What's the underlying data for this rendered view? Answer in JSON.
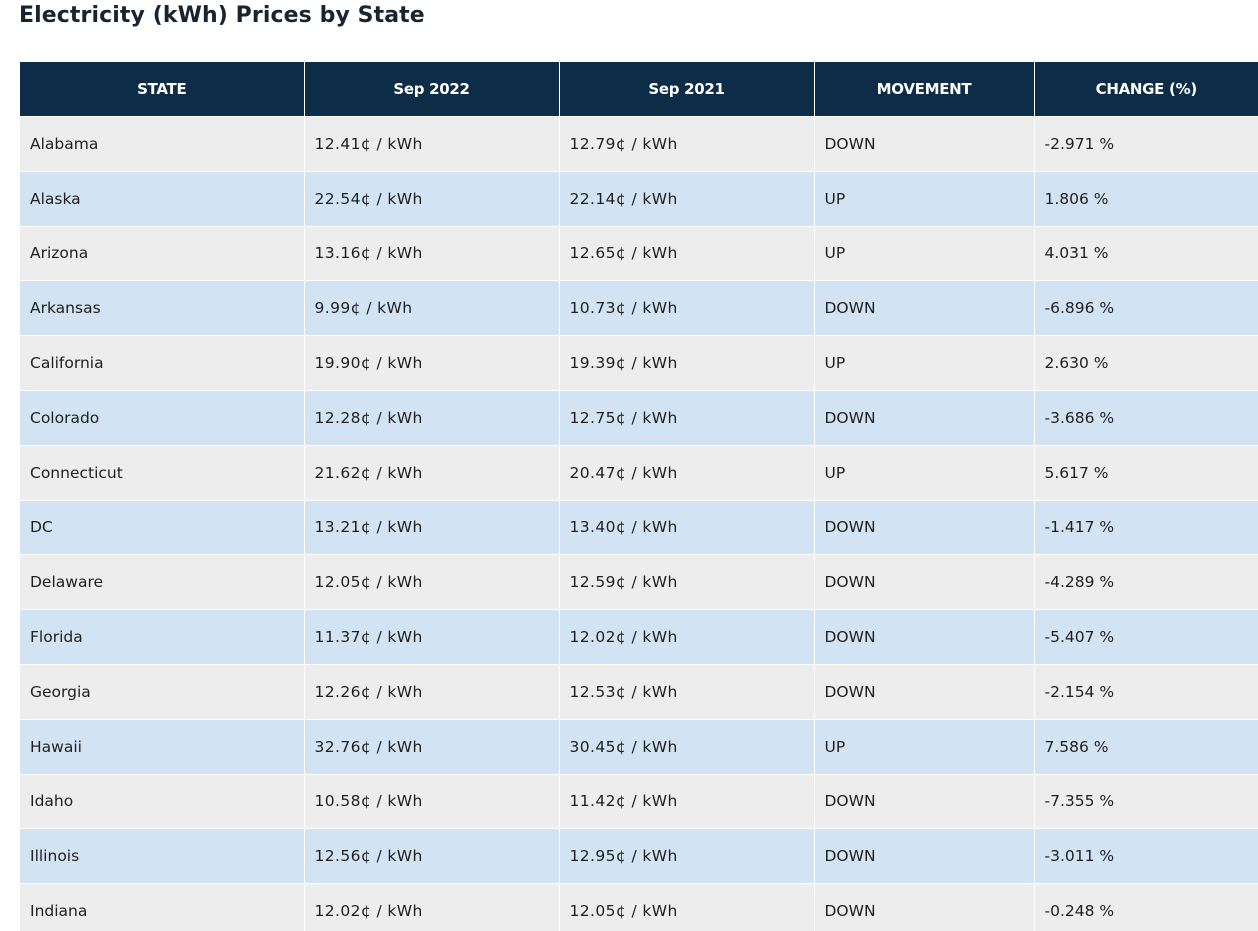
{
  "page": {
    "title": "Electricity (kWh) Prices by State"
  },
  "table": {
    "headers": [
      "STATE",
      "Sep 2022",
      "Sep 2021",
      "MOVEMENT",
      "CHANGE (%)"
    ],
    "colors": {
      "header_bg": "#0d2c48",
      "row_odd": "#ededed",
      "row_even": "#d2e3f4",
      "down": "#1a7a1a",
      "up": "#e01010"
    },
    "rows": [
      {
        "state": "Alabama",
        "sep2022": "12.41¢ / kWh",
        "sep2021": "12.79¢ / kWh",
        "movement": "DOWN",
        "change": "-2.971 %"
      },
      {
        "state": "Alaska",
        "sep2022": "22.54¢ / kWh",
        "sep2021": "22.14¢ / kWh",
        "movement": "UP",
        "change": "1.806 %"
      },
      {
        "state": "Arizona",
        "sep2022": "13.16¢ / kWh",
        "sep2021": "12.65¢ / kWh",
        "movement": "UP",
        "change": "4.031 %"
      },
      {
        "state": "Arkansas",
        "sep2022": "9.99¢ / kWh",
        "sep2021": "10.73¢ / kWh",
        "movement": "DOWN",
        "change": "-6.896 %"
      },
      {
        "state": "California",
        "sep2022": "19.90¢ / kWh",
        "sep2021": "19.39¢ / kWh",
        "movement": "UP",
        "change": "2.630 %"
      },
      {
        "state": "Colorado",
        "sep2022": "12.28¢ / kWh",
        "sep2021": "12.75¢ / kWh",
        "movement": "DOWN",
        "change": "-3.686 %"
      },
      {
        "state": "Connecticut",
        "sep2022": "21.62¢ / kWh",
        "sep2021": "20.47¢ / kWh",
        "movement": "UP",
        "change": "5.617 %"
      },
      {
        "state": "DC",
        "sep2022": "13.21¢ / kWh",
        "sep2021": "13.40¢ / kWh",
        "movement": "DOWN",
        "change": "-1.417 %"
      },
      {
        "state": "Delaware",
        "sep2022": "12.05¢ / kWh",
        "sep2021": "12.59¢ / kWh",
        "movement": "DOWN",
        "change": "-4.289 %"
      },
      {
        "state": "Florida",
        "sep2022": "11.37¢ / kWh",
        "sep2021": "12.02¢ / kWh",
        "movement": "DOWN",
        "change": "-5.407 %"
      },
      {
        "state": "Georgia",
        "sep2022": "12.26¢ / kWh",
        "sep2021": "12.53¢ / kWh",
        "movement": "DOWN",
        "change": "-2.154 %"
      },
      {
        "state": "Hawaii",
        "sep2022": "32.76¢ / kWh",
        "sep2021": "30.45¢ / kWh",
        "movement": "UP",
        "change": "7.586 %"
      },
      {
        "state": "Idaho",
        "sep2022": "10.58¢ / kWh",
        "sep2021": "11.42¢ / kWh",
        "movement": "DOWN",
        "change": "-7.355 %"
      },
      {
        "state": "Illinois",
        "sep2022": "12.56¢ / kWh",
        "sep2021": "12.95¢ / kWh",
        "movement": "DOWN",
        "change": "-3.011 %"
      },
      {
        "state": "Indiana",
        "sep2022": "12.02¢ / kWh",
        "sep2021": "12.05¢ / kWh",
        "movement": "DOWN",
        "change": "-0.248 %"
      }
    ]
  }
}
